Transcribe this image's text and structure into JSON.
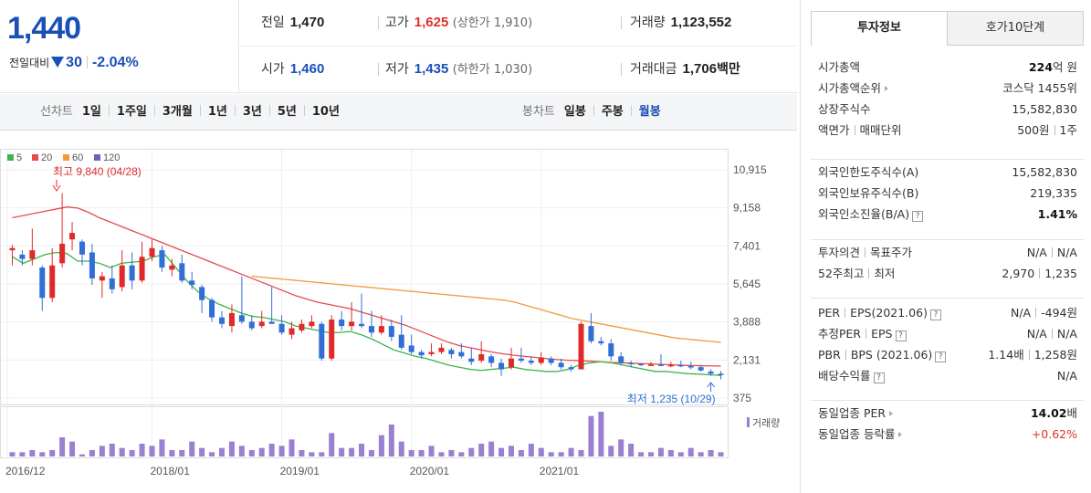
{
  "quote": {
    "price": "1,440",
    "change_label": "전일대비",
    "change_amount": "30",
    "change_percent": "-2.04%",
    "prev_close_label": "전일",
    "prev_close": "1,470",
    "high_label": "고가",
    "high": "1,625",
    "upper_limit": "(상한가 1,910)",
    "volume_label": "거래량",
    "volume": "1,123,552",
    "open_label": "시가",
    "open": "1,460",
    "low_label": "저가",
    "low": "1,435",
    "lower_limit": "(하한가 1,030)",
    "amount_label": "거래대금",
    "amount": "1,706",
    "amount_unit": "백만"
  },
  "tabs": {
    "line_label": "선차트",
    "line_periods": [
      "1일",
      "1주일",
      "3개월",
      "1년",
      "3년",
      "5년",
      "10년"
    ],
    "candle_label": "봉차트",
    "candle_periods": [
      "일봉",
      "주봉",
      "월봉"
    ],
    "candle_selected": "월봉"
  },
  "chart_data": {
    "type": "candlestick",
    "legend": [
      {
        "name": "5",
        "color": "#3cb44b"
      },
      {
        "name": "20",
        "color": "#e84a4a"
      },
      {
        "name": "60",
        "color": "#f39a3d"
      },
      {
        "name": "120",
        "color": "#7a5cc0"
      }
    ],
    "price_ticks": [
      10915,
      9158,
      7401,
      5645,
      3888,
      2131,
      375
    ],
    "price_tick_labels": [
      "10,915",
      "9,158",
      "7,401",
      "5,645",
      "3,888",
      "2,131",
      "375"
    ],
    "x_tick_labels": [
      "2016/12",
      "2018/01",
      "2019/01",
      "2020/01",
      "2021/01"
    ],
    "volume_label": "거래량",
    "high_annotation": "최고 9,840 (04/28)",
    "low_annotation": "최저 1,235 (10/29)",
    "ma5": [
      6900,
      6600,
      6800,
      7000,
      7100,
      7050,
      6700,
      6700,
      6600,
      6400,
      6600,
      6650,
      6700,
      6900,
      7000,
      6400,
      5800,
      5300,
      4950,
      4700,
      4500,
      4300,
      4150,
      4100,
      4000,
      3900,
      3700,
      3600,
      3500,
      3400,
      3400,
      3450,
      3300,
      3100,
      2850,
      2600,
      2450,
      2300,
      2200,
      2050,
      1900,
      1800,
      1700,
      1650,
      1700,
      1750,
      1800,
      1700,
      1650,
      1600,
      1600,
      1700,
      1900,
      2000,
      2050,
      2000,
      1900,
      1800,
      1700,
      1600,
      1600,
      1550,
      1500,
      1480,
      1450,
      1420
    ],
    "ma20": [
      8700,
      8800,
      8900,
      9000,
      9100,
      9200,
      9150,
      8950,
      8700,
      8500,
      8300,
      8100,
      7900,
      7700,
      7500,
      7300,
      7100,
      6900,
      6700,
      6500,
      6300,
      6100,
      5900,
      5700,
      5500,
      5300,
      5100,
      4950,
      4800,
      4700,
      4600,
      4500,
      4350,
      4200,
      4050,
      3900,
      3750,
      3550,
      3350,
      3150,
      2950,
      2800,
      2700,
      2600,
      2500,
      2420,
      2350,
      2300,
      2250,
      2200,
      2150,
      2120,
      2100,
      2080,
      2050,
      2020,
      2000,
      1980,
      1960,
      1940,
      1920,
      1900,
      1880,
      1870,
      1860,
      1850
    ],
    "ma60_start_index": 24,
    "ma60": [
      6000,
      5950,
      5900,
      5850,
      5800,
      5750,
      5700,
      5650,
      5600,
      5550,
      5500,
      5450,
      5400,
      5350,
      5300,
      5250,
      5200,
      5150,
      5100,
      5050,
      5000,
      4950,
      4900,
      4800,
      4650,
      4500,
      4350,
      4200,
      4050,
      3950,
      3850,
      3750,
      3650,
      3550,
      3450,
      3350,
      3250,
      3150,
      3100,
      3050,
      3000,
      2950
    ],
    "candles": [
      [
        7200,
        7300,
        7450,
        6500
      ],
      [
        7000,
        6800,
        7200,
        6500
      ],
      [
        6800,
        7200,
        8200,
        6500
      ],
      [
        6400,
        5000,
        6500,
        4400
      ],
      [
        5000,
        6500,
        7300,
        4800
      ],
      [
        6600,
        7500,
        9840,
        6400
      ],
      [
        7700,
        8000,
        8500,
        7200
      ],
      [
        7600,
        7000,
        7700,
        6500
      ],
      [
        7100,
        5900,
        7500,
        5600
      ],
      [
        5800,
        6000,
        6200,
        5000
      ],
      [
        5900,
        5400,
        6500,
        5200
      ],
      [
        5500,
        6500,
        7200,
        5300
      ],
      [
        6500,
        5800,
        7100,
        5400
      ],
      [
        5800,
        6900,
        7600,
        5700
      ],
      [
        6900,
        7300,
        7700,
        6700
      ],
      [
        7200,
        6400,
        7400,
        6200
      ],
      [
        6300,
        6500,
        6800,
        6000
      ],
      [
        6600,
        5800,
        7000,
        5700
      ],
      [
        5800,
        5600,
        6200,
        5400
      ],
      [
        5500,
        4900,
        5600,
        4300
      ],
      [
        4900,
        4100,
        5000,
        3900
      ],
      [
        4100,
        3800,
        4400,
        3600
      ],
      [
        3700,
        4300,
        4700,
        3400
      ],
      [
        4200,
        3900,
        6000,
        3800
      ],
      [
        3900,
        3600,
        4200,
        3500
      ],
      [
        3700,
        3900,
        4400,
        3600
      ],
      [
        3900,
        3800,
        5500,
        3800
      ],
      [
        3800,
        3400,
        4200,
        3300
      ],
      [
        3300,
        3600,
        3900,
        3100
      ],
      [
        3500,
        3800,
        4000,
        3400
      ],
      [
        3700,
        3900,
        4200,
        3600
      ],
      [
        3800,
        2200,
        3900,
        2100
      ],
      [
        2200,
        4000,
        4200,
        2100
      ],
      [
        4000,
        3700,
        4400,
        3500
      ],
      [
        3700,
        3900,
        4800,
        3500
      ],
      [
        3800,
        3700,
        5200,
        3600
      ],
      [
        3700,
        3400,
        4400,
        3200
      ],
      [
        3400,
        3700,
        4200,
        3300
      ],
      [
        3700,
        3200,
        4000,
        3000
      ],
      [
        3300,
        2700,
        4200,
        2600
      ],
      [
        2800,
        2500,
        3300,
        2400
      ],
      [
        2500,
        2350,
        2600,
        2200
      ],
      [
        2400,
        2500,
        2900,
        2300
      ],
      [
        2500,
        2700,
        2900,
        2400
      ],
      [
        2600,
        2400,
        2700,
        2200
      ],
      [
        2500,
        2300,
        2900,
        2200
      ],
      [
        2200,
        2050,
        2700,
        1900
      ],
      [
        2100,
        2400,
        3000,
        2000
      ],
      [
        2300,
        2000,
        2400,
        1800
      ],
      [
        2000,
        1700,
        2200,
        1400
      ],
      [
        1800,
        2200,
        2700,
        1700
      ],
      [
        2200,
        2100,
        2700,
        2000
      ],
      [
        2100,
        2000,
        2300,
        1900
      ],
      [
        2000,
        2250,
        2500,
        1900
      ],
      [
        2200,
        2000,
        2300,
        1900
      ],
      [
        2000,
        1800,
        2200,
        1700
      ],
      [
        1800,
        1700,
        1900,
        1600
      ],
      [
        1700,
        3800,
        3900,
        1700
      ],
      [
        3700,
        3000,
        4300,
        2900
      ],
      [
        3000,
        2900,
        3200,
        2800
      ],
      [
        2900,
        2300,
        3100,
        2100
      ],
      [
        2300,
        2000,
        2500,
        1900
      ],
      [
        2000,
        1950,
        2100,
        1800
      ],
      [
        1950,
        1900,
        2000,
        1850
      ],
      [
        1900,
        1920,
        2050,
        1850
      ],
      [
        1920,
        1870,
        2400,
        1850
      ],
      [
        1880,
        1900,
        2050,
        1800
      ],
      [
        1900,
        1850,
        2100,
        1800
      ],
      [
        1850,
        1800,
        2050,
        1700
      ],
      [
        1800,
        1650,
        1900,
        1600
      ],
      [
        1600,
        1500,
        1700,
        1400
      ],
      [
        1500,
        1440,
        1625,
        1235
      ]
    ],
    "volumes": [
      2,
      2,
      3,
      2,
      3,
      9,
      7,
      1,
      3,
      5,
      6,
      4,
      3,
      6,
      5,
      8,
      3,
      3,
      7,
      4,
      2,
      4,
      7,
      5,
      3,
      4,
      6,
      5,
      8,
      3,
      2,
      2,
      11,
      4,
      4,
      6,
      3,
      10,
      15,
      7,
      3,
      3,
      5,
      2,
      3,
      2,
      4,
      6,
      7,
      4,
      5,
      3,
      6,
      4,
      2,
      2,
      4,
      3,
      19,
      21,
      5,
      8,
      6,
      2,
      2,
      4,
      3,
      2,
      4,
      2,
      3,
      2
    ]
  },
  "panel": {
    "tab_info": "투자정보",
    "tab_orderbook": "호가10단계",
    "market_cap_label": "시가총액",
    "market_cap_value": "224",
    "market_cap_unit": "억 원",
    "market_cap_rank_label": "시가총액순위",
    "market_cap_rank_value": "코스닥 1455위",
    "shares_label": "상장주식수",
    "shares_value": "15,582,830",
    "par_label": "액면가",
    "trade_unit_label": "매매단위",
    "par_value": "500원",
    "trade_unit_value": "1주",
    "foreign_limit_label": "외국인한도주식수(A)",
    "foreign_limit_value": "15,582,830",
    "foreign_hold_label": "외국인보유주식수(B)",
    "foreign_hold_value": "219,335",
    "foreign_ratio_label": "외국인소진율(B/A)",
    "foreign_ratio_value": "1.41%",
    "opinion_label": "투자의견",
    "target_label": "목표주가",
    "opinion_value": "N/A",
    "target_value": "N/A",
    "w52_high_label": "52주최고",
    "w52_low_label": "최저",
    "w52_high_value": "2,970",
    "w52_low_value": "1,235",
    "per_label": "PER",
    "eps_label": "EPS(2021.06)",
    "per_value": "N/A",
    "eps_value": "-494원",
    "est_per_label": "추정PER",
    "est_eps_label": "EPS",
    "est_per_value": "N/A",
    "est_eps_value": "N/A",
    "pbr_label": "PBR",
    "bps_label": "BPS (2021.06)",
    "pbr_value": "1.14배",
    "bps_value": "1,258원",
    "dividend_label": "배당수익률",
    "dividend_value": "N/A",
    "ind_per_label": "동일업종 PER",
    "ind_per_value": "14.02",
    "ind_per_unit": "배",
    "ind_change_label": "동일업종 등락률",
    "ind_change_value": "+0.62%"
  }
}
